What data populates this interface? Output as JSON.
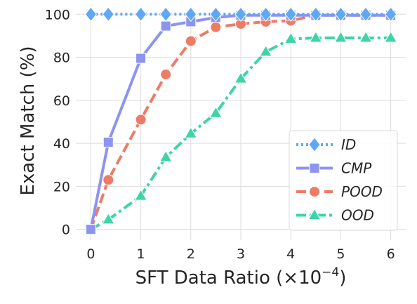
{
  "chart_data": {
    "type": "line",
    "xlabel_main": "SFT Data Ratio (",
    "xlabel_base": "×10",
    "xlabel_exp": "−4",
    "xlabel_close": ")",
    "ylabel": "Exact Match (%)",
    "x": [
      0,
      0.35,
      1,
      1.5,
      2,
      2.5,
      3,
      3.5,
      4,
      4.5,
      5,
      5.5,
      6
    ],
    "xticks": [
      "0",
      "1",
      "2",
      "3",
      "4",
      "5",
      "6"
    ],
    "yticks": [
      "0",
      "20",
      "40",
      "60",
      "80",
      "100"
    ],
    "xlim": [
      -0.3,
      6.3
    ],
    "ylim": [
      -5,
      104
    ],
    "grid": true,
    "legend_position": "lower-right",
    "series": [
      {
        "name": "ID",
        "color": "#5ea8f5",
        "marker": "diamond",
        "dash": "dotted",
        "values": [
          100,
          100,
          100,
          100,
          100,
          100,
          100,
          100,
          100,
          100,
          100,
          100,
          100
        ]
      },
      {
        "name": "CMP",
        "color": "#8c94f0",
        "marker": "square",
        "dash": "solid",
        "values": [
          0,
          40.5,
          79.5,
          94.5,
          96.5,
          98.5,
          99.5,
          99.5,
          99.5,
          99.5,
          99.5,
          99.5,
          99.5
        ]
      },
      {
        "name": "POOD",
        "color": "#ee7b66",
        "marker": "circle",
        "dash": "dashed",
        "values": [
          0,
          23,
          51,
          72,
          87.5,
          94,
          95.5,
          96.5,
          97,
          99.5,
          99.5,
          99.5,
          99.5
        ]
      },
      {
        "name": "OOD",
        "color": "#3ed4a8",
        "marker": "triangle",
        "dash": "dashdot",
        "values": [
          0,
          4.5,
          15.5,
          33.5,
          44.5,
          54,
          70,
          82.5,
          88.5,
          89,
          89,
          89,
          89
        ]
      }
    ]
  }
}
